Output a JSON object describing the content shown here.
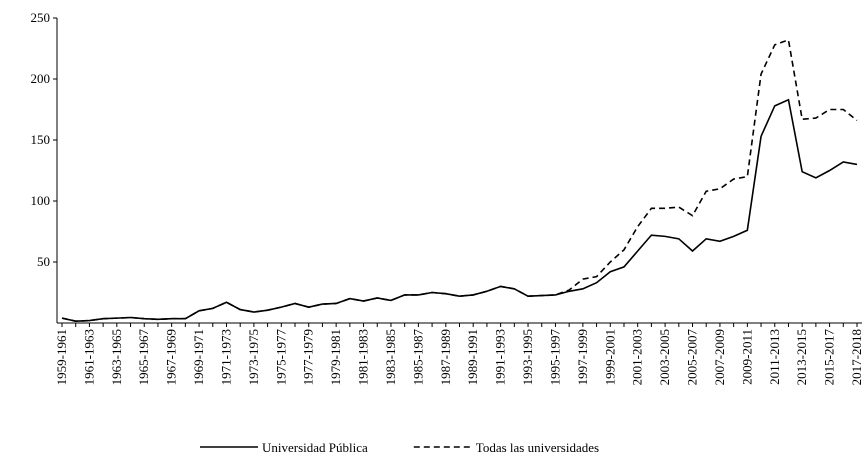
{
  "chart_data": {
    "type": "line",
    "categories": [
      "1959-1961",
      null,
      "1961-1963",
      null,
      "1963-1965",
      null,
      "1965-1967",
      null,
      "1967-1969",
      null,
      "1969-1971",
      null,
      "1971-1973",
      null,
      "1973-1975",
      null,
      "1975-1977",
      null,
      "1977-1979",
      null,
      "1979-1981",
      null,
      "1981-1983",
      null,
      "1983-1985",
      null,
      "1985-1987",
      null,
      "1987-1989",
      null,
      "1989-1991",
      null,
      "1991-1993",
      null,
      "1993-1995",
      null,
      "1995-1997",
      null,
      "1997-1999",
      null,
      "1999-2001",
      null,
      "2001-2003",
      null,
      "2003-2005",
      null,
      "2005-2007",
      null,
      "2007-2009",
      null,
      "2009-2011",
      null,
      "2011-2013",
      null,
      "2013-2015",
      null,
      "2015-2017",
      null,
      "2017-2018"
    ],
    "series": [
      {
        "name": "Universidad Pública",
        "color": "#000000",
        "dash": "solid",
        "values": [
          4,
          1.5,
          2,
          3.5,
          4,
          4.5,
          3.5,
          3,
          3.5,
          3.5,
          10,
          12,
          17,
          11,
          9,
          10.5,
          13,
          16,
          13,
          15.5,
          16,
          20,
          18,
          20.5,
          18.5,
          23,
          23,
          25,
          24,
          22,
          23,
          26,
          30,
          28,
          22,
          22.5,
          23,
          26,
          28,
          33,
          42,
          46,
          59,
          72,
          71,
          69,
          59,
          69,
          67,
          71,
          76,
          153,
          178,
          183,
          124,
          119,
          125,
          132,
          130
        ]
      },
      {
        "name": "Todas las universidades",
        "color": "#000000",
        "dash": "dashed",
        "values": [
          4,
          1.5,
          2,
          3.5,
          4,
          4.5,
          3.5,
          3,
          3.5,
          3.5,
          10,
          12,
          17,
          11,
          9,
          10.5,
          13,
          16,
          13,
          15.5,
          16,
          20,
          18,
          20.5,
          18.5,
          23,
          23,
          25,
          24,
          22,
          23,
          26,
          30,
          28,
          22,
          22.5,
          23,
          27,
          36,
          38,
          50,
          60,
          79,
          94,
          94,
          95,
          88,
          108,
          110,
          118,
          120,
          204,
          228,
          232,
          167,
          168,
          175,
          175,
          166
        ]
      }
    ],
    "ylim": [
      0,
      250
    ],
    "yticks": [
      50,
      100,
      150,
      200,
      250
    ],
    "legend": "bottom"
  }
}
